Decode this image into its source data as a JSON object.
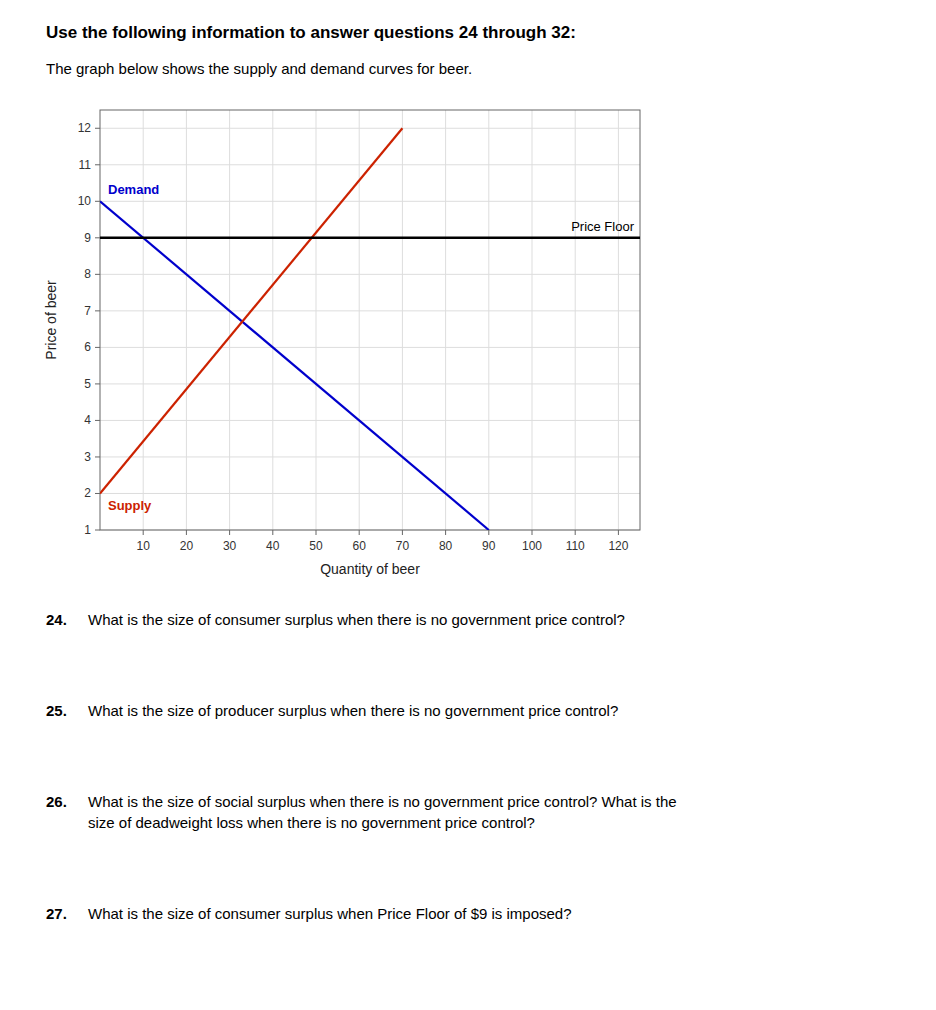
{
  "chart_data": {
    "type": "line",
    "title": "Use the following information to answer questions 24 through 32:",
    "subtitle": "The graph below shows the supply and demand curves for beer.",
    "xlabel": "Quantity of beer",
    "ylabel": "Price of beer",
    "series": [
      {
        "name": "Demand",
        "color": "#0000cc",
        "x": [
          0,
          90
        ],
        "values": [
          10,
          1
        ]
      },
      {
        "name": "Supply",
        "color": "#cc2200",
        "x": [
          0,
          70
        ],
        "values": [
          2,
          12
        ]
      }
    ],
    "price_floor": {
      "label": "Price Floor",
      "y": 9,
      "color": "#000000"
    },
    "xlim": [
      0,
      125
    ],
    "ylim": [
      1,
      12.5
    ],
    "xticks": [
      10,
      20,
      30,
      40,
      50,
      60,
      70,
      80,
      90,
      100,
      110,
      120
    ],
    "yticks": [
      1,
      2,
      3,
      4,
      5,
      6,
      7,
      8,
      9,
      10,
      11,
      12
    ],
    "grid": true,
    "questions": [
      {
        "number": "24.",
        "text": "What is the size of consumer surplus when there is no government price control?"
      },
      {
        "number": "25.",
        "text": "What is the size of producer surplus when there is no government price control?"
      },
      {
        "number": "26.",
        "text": "What is the size of social surplus when there is no government price control? What is the\nsize of deadweight loss when there is no government price control?"
      },
      {
        "number": "27.",
        "text": "What is the size of consumer surplus when Price Floor of $9 is imposed?"
      }
    ]
  }
}
